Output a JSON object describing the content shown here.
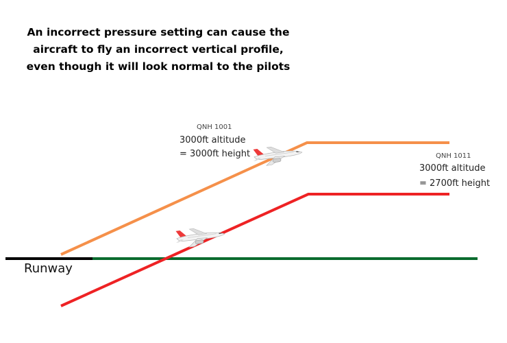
{
  "title": {
    "line1": "An incorrect pressure setting can cause the",
    "line2": "aircraft to fly an incorrect vertical profile,",
    "line3": "even though it will look normal to the pilots"
  },
  "profile_correct": {
    "qnh": "QNH 1001",
    "altitude": "3000ft altitude",
    "height": "= 3000ft height",
    "color": "#f5904a"
  },
  "profile_incorrect": {
    "qnh": "QNH 1011",
    "altitude": "3000ft altitude",
    "height": "= 2700ft height",
    "color": "#ee2224"
  },
  "ground": {
    "runway_label": "Runway",
    "runway_color": "#000000",
    "ground_color": "#0a6b2e"
  },
  "icons": {
    "aircraft": "airliner-icon"
  }
}
